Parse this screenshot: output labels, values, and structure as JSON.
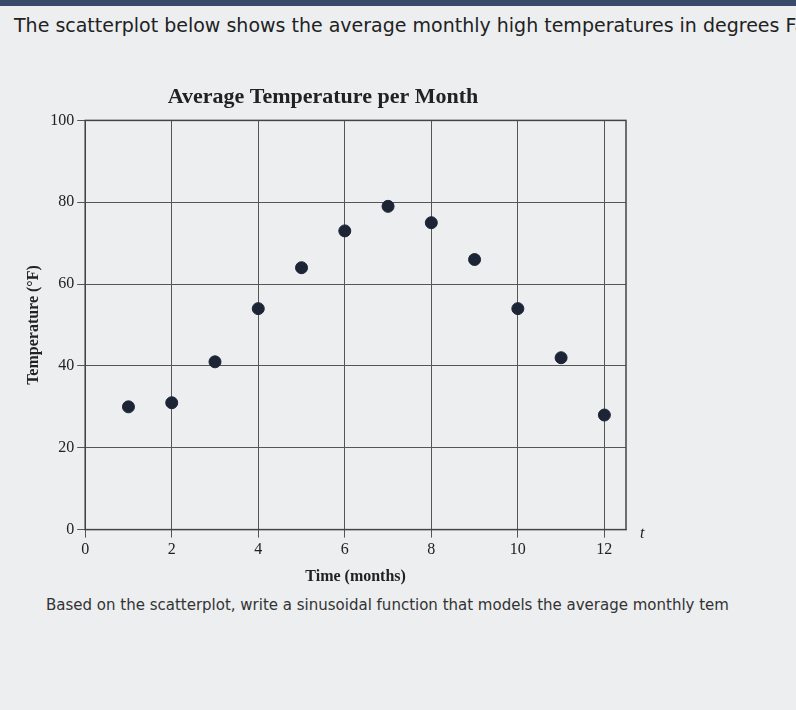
{
  "header": "The scatterplot below shows the average monthly high temperatures in degrees Fahr",
  "chart_data": {
    "type": "scatter",
    "title": "Average Temperature per Month",
    "x_label": "Time (months)",
    "y_label": "Temperature (°F)",
    "x_variable": "t",
    "x": [
      1,
      2,
      3,
      4,
      5,
      6,
      7,
      8,
      9,
      10,
      11,
      12
    ],
    "values": [
      30,
      31,
      41,
      54,
      64,
      73,
      79,
      75,
      66,
      54,
      42,
      28
    ],
    "color": "#1c2436",
    "marker": "circle",
    "xlim": [
      0,
      12.5
    ],
    "xticks": [
      0,
      2,
      4,
      6,
      8,
      10,
      12
    ],
    "ylim": [
      0,
      100
    ],
    "yticks": [
      0,
      20,
      40,
      60,
      80,
      100
    ],
    "grid": true
  },
  "question": "Based on the scatterplot, write a sinusoidal function that models the average monthly tem"
}
